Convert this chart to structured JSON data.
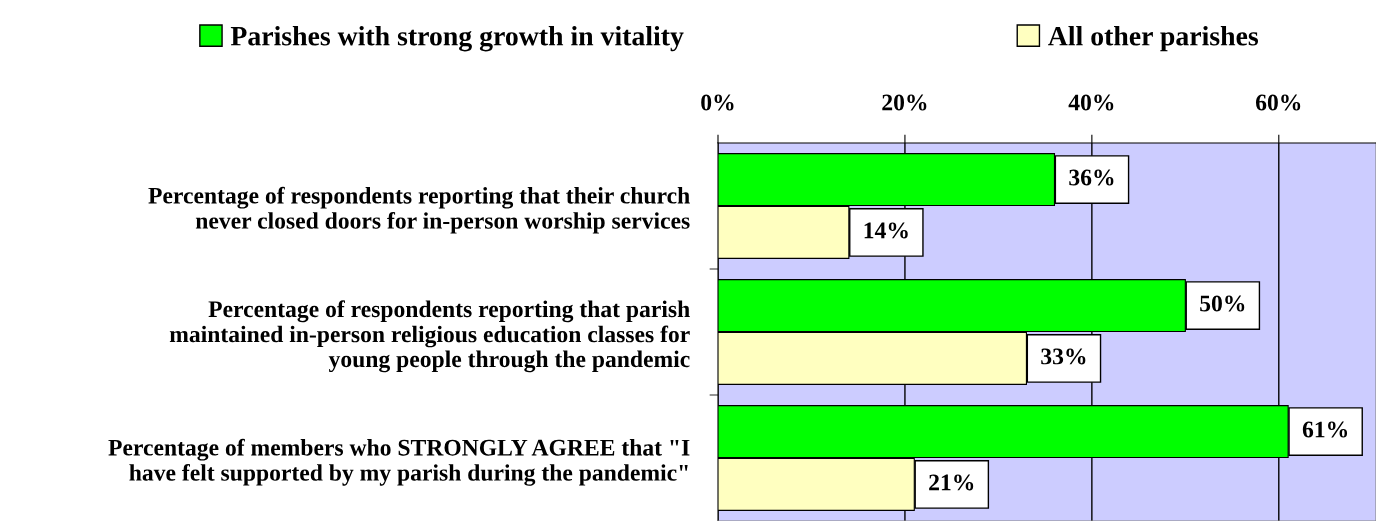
{
  "chart_data": {
    "type": "bar",
    "orientation": "horizontal",
    "categories": [
      "Percentage of respondents reporting that their church\nnever closed doors for in-person worship services",
      "Percentage of respondents reporting that parish\nmaintained in-person religious education classes for\nyoung people through the pandemic",
      "Percentage of members who STRONGLY AGREE that \"I\nhave felt supported by my parish during the pandemic\""
    ],
    "series": [
      {
        "name": "Parishes with strong growth in vitality",
        "color": "#00ff00",
        "values": [
          36,
          50,
          61
        ]
      },
      {
        "name": "All other parishes",
        "color": "#ffffc0",
        "values": [
          14,
          33,
          21
        ]
      }
    ],
    "xlim": [
      0,
      70.4
    ],
    "xticks": [
      {
        "value": 0,
        "label": "0%"
      },
      {
        "value": 20,
        "label": "20%"
      },
      {
        "value": 40,
        "label": "40%"
      },
      {
        "value": 60,
        "label": "60%"
      }
    ],
    "value_labels": [
      [
        "36%",
        "50%",
        "61%"
      ],
      [
        "14%",
        "33%",
        "21%"
      ]
    ],
    "grid": "x",
    "legend": "top"
  }
}
